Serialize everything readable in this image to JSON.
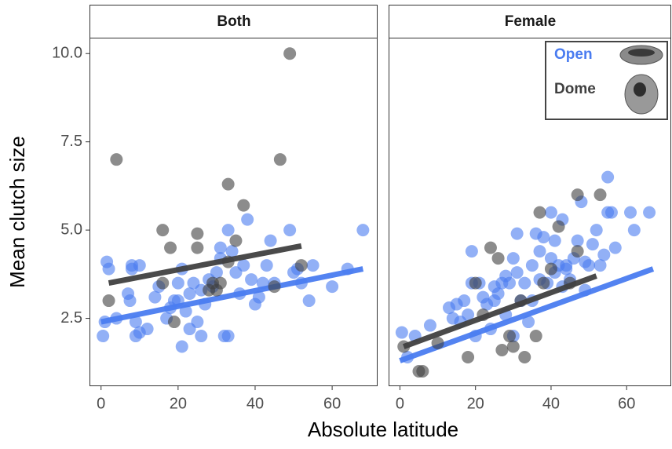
{
  "chart_data": [
    {
      "type": "scatter",
      "title": "Both",
      "y_label": "Mean clutch size",
      "x_label": "Absolute latitude",
      "xlim": [
        -3,
        71.8
      ],
      "ylim": [
        0.6,
        10.45
      ],
      "xticks": [
        0,
        20,
        40,
        60
      ],
      "yticks": [
        {
          "value": 2.5,
          "label": "2.5"
        },
        {
          "value": 5,
          "label": "5.0"
        },
        {
          "value": 7.5,
          "label": "7.5"
        },
        {
          "value": 10,
          "label": "10.0"
        }
      ],
      "series": [
        {
          "color": "#4a7cf0",
          "x": [
            1,
            0.5,
            1.5,
            2,
            4,
            7,
            7.5,
            8,
            9,
            9,
            10,
            10,
            8,
            12,
            14,
            15,
            17,
            18,
            19,
            20,
            21,
            21,
            22,
            23,
            23,
            24,
            25,
            26,
            27,
            28,
            29,
            30,
            31,
            32,
            33,
            33,
            34,
            35,
            36,
            37,
            38,
            39,
            40,
            41,
            42,
            44,
            45,
            49,
            50,
            51,
            52,
            54,
            55,
            60,
            64,
            68,
            26,
            31,
            43,
            20
          ],
          "values": [
            2.4,
            2.0,
            4.1,
            3.9,
            2.5,
            3.2,
            3.0,
            4.0,
            2.4,
            2.0,
            2.1,
            4.0,
            3.9,
            2.2,
            3.1,
            3.4,
            2.5,
            2.8,
            3.0,
            3.5,
            1.7,
            3.9,
            2.7,
            3.2,
            2.2,
            3.5,
            2.4,
            2.0,
            2.9,
            3.6,
            3.4,
            3.8,
            4.2,
            2.0,
            2.0,
            5.0,
            4.4,
            3.8,
            3.2,
            4.0,
            5.3,
            3.6,
            2.9,
            3.1,
            3.5,
            4.7,
            3.5,
            5.0,
            3.8,
            3.9,
            3.5,
            3.0,
            4.0,
            3.4,
            3.9,
            5.0,
            3.3,
            4.5,
            4.0,
            3.0
          ],
          "trend": {
            "x": [
              0,
              68
            ],
            "values": [
              2.4,
              3.9
            ]
          }
        },
        {
          "color": "#404040",
          "x": [
            4,
            49,
            46.5,
            33,
            37,
            16,
            25,
            2,
            18,
            25,
            35,
            52,
            33,
            29,
            30,
            19,
            16,
            45,
            31,
            28
          ],
          "values": [
            7.0,
            10.0,
            7.0,
            6.3,
            5.7,
            5.0,
            4.9,
            3.0,
            4.5,
            4.5,
            4.7,
            4.0,
            4.1,
            3.5,
            3.3,
            2.4,
            3.5,
            3.4,
            3.5,
            3.3
          ],
          "trend": {
            "x": [
              2,
              52
            ],
            "values": [
              3.5,
              4.55
            ]
          }
        }
      ]
    },
    {
      "type": "scatter",
      "title": "Female",
      "legend": "upper right",
      "xlim": [
        -3,
        71.8
      ],
      "ylim": [
        0.6,
        10.45
      ],
      "xticks": [
        0,
        20,
        40,
        60
      ],
      "series": [
        {
          "name": "Open",
          "color": "#4a7cf0",
          "x": [
            0.5,
            2,
            4,
            13,
            14,
            15,
            16,
            17,
            18,
            19,
            19,
            20,
            21,
            22,
            23,
            24,
            25,
            25,
            26,
            27,
            28,
            28,
            29,
            30,
            30,
            31,
            31,
            32,
            33,
            34,
            35,
            36,
            37,
            37,
            38,
            39,
            40,
            40,
            41,
            41,
            42,
            43,
            43,
            44,
            45,
            46,
            47,
            48,
            49,
            49,
            50,
            51,
            52,
            53,
            54,
            55,
            55,
            56,
            57,
            61,
            62,
            66,
            8,
            35,
            44
          ],
          "values": [
            2.1,
            1.4,
            2.0,
            2.8,
            2.5,
            2.9,
            2.4,
            3.0,
            2.6,
            3.5,
            4.4,
            2.0,
            3.5,
            3.1,
            2.9,
            2.2,
            3.0,
            3.4,
            3.2,
            3.5,
            2.6,
            3.7,
            3.5,
            2.0,
            4.2,
            4.9,
            3.8,
            3.0,
            3.5,
            2.4,
            4.0,
            4.9,
            3.6,
            4.4,
            4.8,
            3.5,
            4.2,
            5.5,
            3.8,
            4.7,
            4.0,
            3.4,
            5.3,
            3.9,
            3.6,
            4.2,
            4.7,
            5.8,
            4.1,
            3.3,
            4.0,
            4.6,
            5.0,
            4.0,
            4.3,
            6.5,
            5.5,
            5.5,
            4.5,
            5.5,
            5.0,
            5.5,
            2.3,
            3.0,
            4.0
          ],
          "trend": {
            "x": [
              0,
              67
            ],
            "values": [
              1.3,
              3.9
            ]
          }
        },
        {
          "name": "Dome",
          "color": "#404040",
          "x": [
            1,
            5,
            6,
            10,
            18,
            22,
            24,
            26,
            27,
            29,
            30,
            33,
            36,
            37,
            38,
            42,
            47,
            47,
            53,
            45,
            32,
            40,
            20
          ],
          "values": [
            1.7,
            1.0,
            1.0,
            1.8,
            1.4,
            2.6,
            4.5,
            4.2,
            1.6,
            2.0,
            1.7,
            1.4,
            2.0,
            5.5,
            3.5,
            5.1,
            6.0,
            4.4,
            6.0,
            3.5,
            3.0,
            3.9,
            3.5
          ],
          "trend": {
            "x": [
              1,
              52
            ],
            "values": [
              1.7,
              3.7
            ]
          }
        }
      ]
    }
  ]
}
